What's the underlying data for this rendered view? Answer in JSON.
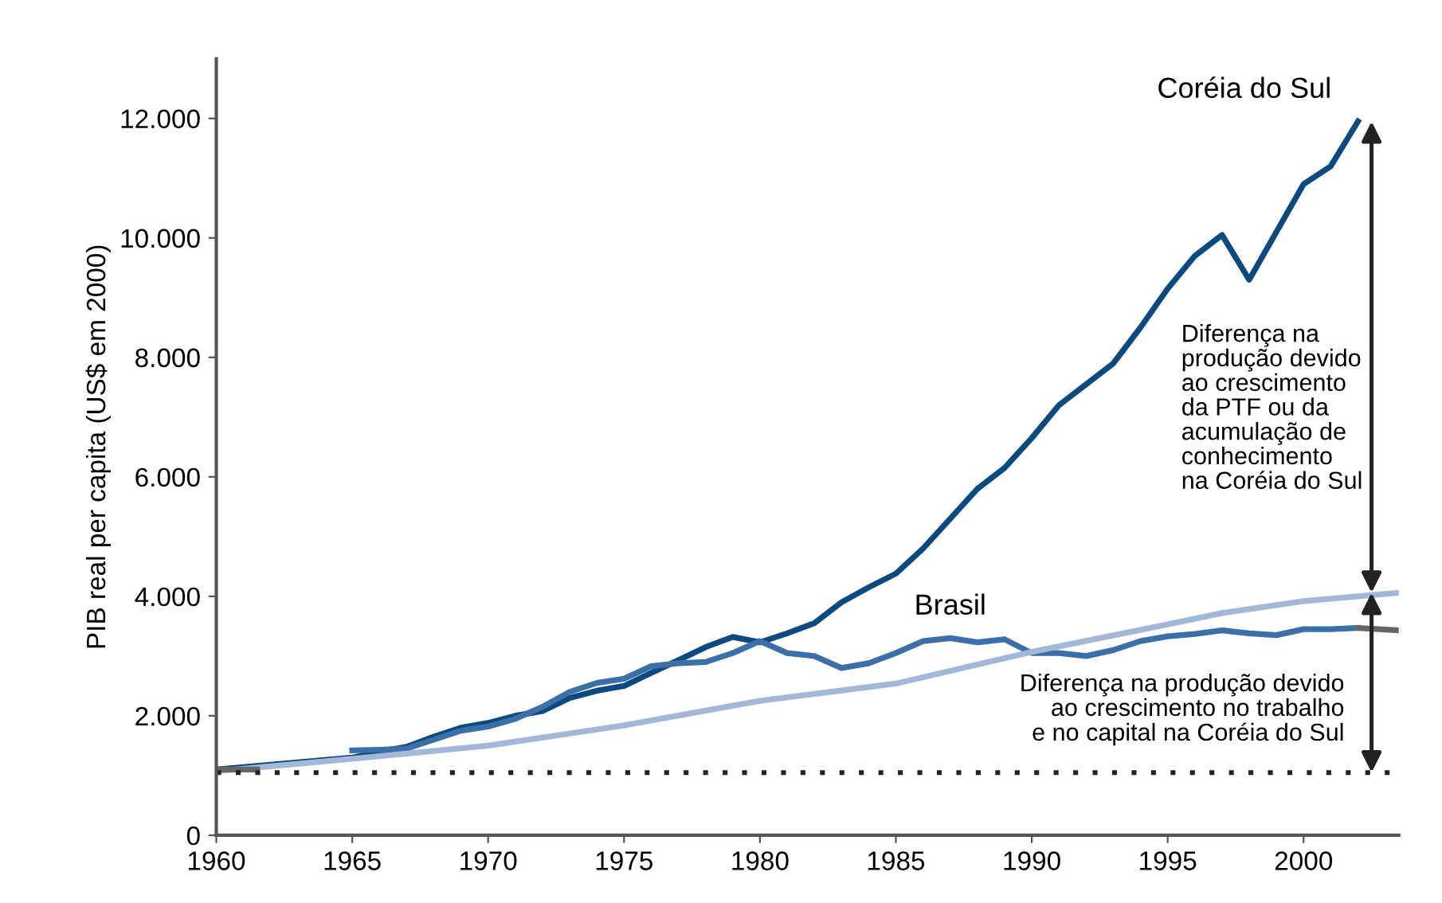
{
  "chart_data": {
    "type": "line",
    "ylabel": "PIB real per capita (US$ em 2000)",
    "xlim": [
      1960,
      2003.5
    ],
    "xticks": [
      1960,
      1965,
      1970,
      1975,
      1980,
      1985,
      1990,
      1995,
      2000
    ],
    "ylim": [
      0,
      13000
    ],
    "yticks": [
      {
        "value": 0,
        "label": "0"
      },
      {
        "value": 2000,
        "label": "2.000"
      },
      {
        "value": 4000,
        "label": "4.000"
      },
      {
        "value": 6000,
        "label": "6.000"
      },
      {
        "value": 8000,
        "label": "8.000"
      },
      {
        "value": 10000,
        "label": "10.000"
      },
      {
        "value": 12000,
        "label": "12.000"
      }
    ],
    "grid": false,
    "legend": false,
    "marker": "none",
    "line_style": "solid",
    "series": [
      {
        "color": "#0b4a80",
        "x": [
          1960,
          1965,
          1966,
          1967,
          1968,
          1969,
          1970,
          1971,
          1972,
          1973,
          1974,
          1975,
          1976,
          1977,
          1978,
          1979,
          1980,
          1981,
          1982,
          1983,
          1984,
          1985,
          1986,
          1987,
          1988,
          1989,
          1990,
          1991,
          1992,
          1993,
          1994,
          1995,
          1996,
          1997,
          1998,
          1999,
          2000,
          2001,
          2002
        ],
        "values": [
          1100,
          1300,
          1400,
          1480,
          1650,
          1800,
          1880,
          2000,
          2080,
          2300,
          2420,
          2500,
          2720,
          2930,
          3150,
          3320,
          3230,
          3380,
          3550,
          3900,
          4150,
          4380,
          4800,
          5300,
          5800,
          6150,
          6650,
          7200,
          7550,
          7900,
          8500,
          9150,
          9700,
          10050,
          9300,
          10100,
          10900,
          11200,
          11950
        ]
      },
      {
        "color": "#3a6fa8",
        "x": [
          1965,
          1966,
          1967,
          1968,
          1969,
          1970,
          1971,
          1972,
          1973,
          1974,
          1975,
          1976,
          1977,
          1978,
          1979,
          1980,
          1981,
          1982,
          1983,
          1984,
          1985,
          1986,
          1987,
          1988,
          1989,
          1990,
          1991,
          1992,
          1993,
          1994,
          1995,
          1996,
          1997,
          1998,
          1999,
          2000,
          2001,
          2002
        ],
        "values": [
          1420,
          1430,
          1450,
          1600,
          1750,
          1820,
          1950,
          2150,
          2400,
          2550,
          2620,
          2830,
          2880,
          2900,
          3050,
          3250,
          3050,
          3000,
          2800,
          2880,
          3050,
          3250,
          3300,
          3230,
          3280,
          3050,
          3050,
          3000,
          3100,
          3250,
          3330,
          3370,
          3430,
          3380,
          3350,
          3450,
          3450,
          3470
        ]
      },
      {
        "color": "#a3b8d8",
        "x": [
          1960,
          1965,
          1970,
          1975,
          1980,
          1985,
          1990,
          1995,
          1997,
          2000,
          2003.5
        ],
        "values": [
          1070,
          1280,
          1500,
          1840,
          2250,
          2540,
          3070,
          3530,
          3720,
          3920,
          4060
        ]
      },
      {
        "color": "#666666",
        "x": [
          1960,
          1961.5,
          1962,
          2002,
          2003.5
        ],
        "values": [
          1100,
          1100,
          null,
          3470,
          3430
        ]
      }
    ],
    "ref_lines": [
      {
        "axis": "y",
        "value": 1050,
        "color": "#222222",
        "line_style": "dotted"
      }
    ],
    "annotations": [
      {
        "text": "Coréia do Sul",
        "x": 2002,
        "y": 11950
      },
      {
        "text": "Brasil",
        "x": 1987,
        "y": 3300
      },
      "Diferença na\nprodução devido\nao crescimento\nda PTF ou da\nacumulação de\nconhecimento\nna Coréia do Sul",
      "Diferença na produção devido\nao crescimento no trabalho\ne no capital na Coréia do Sul"
    ]
  }
}
